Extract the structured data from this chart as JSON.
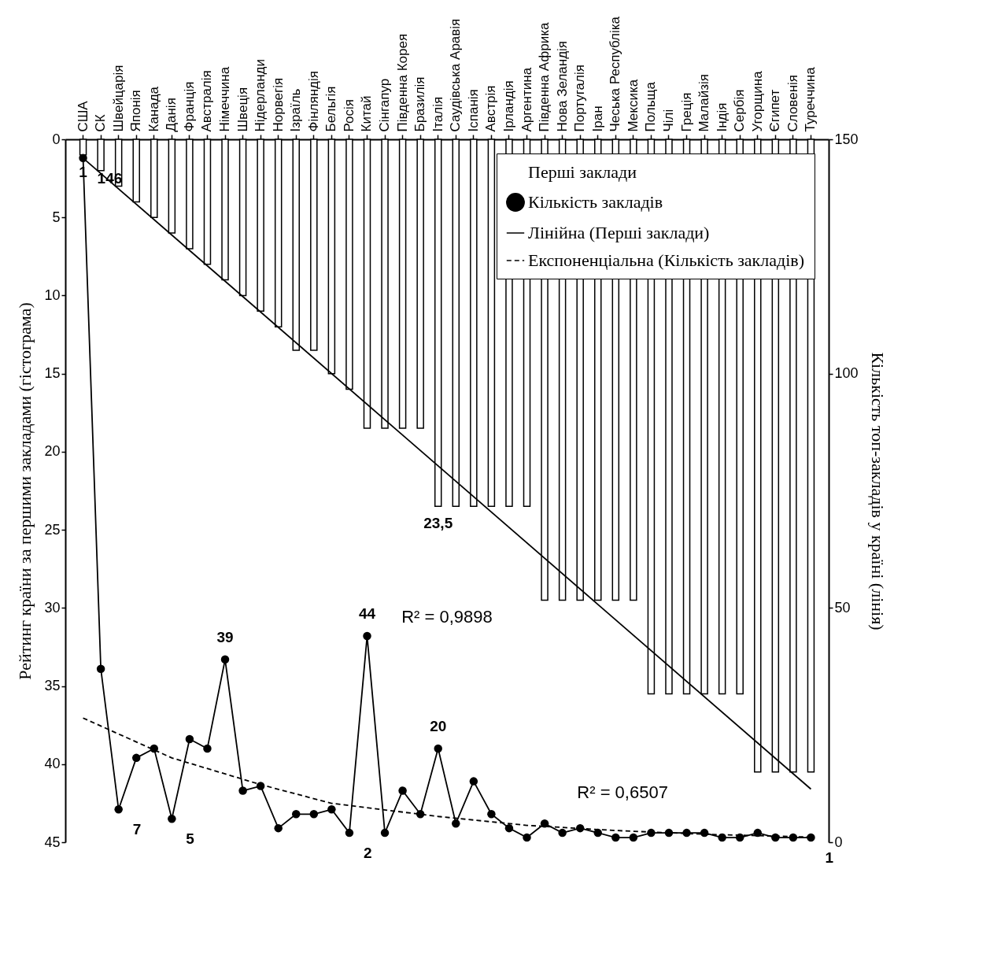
{
  "chart_data": {
    "type": "bar",
    "categories": [
      "США",
      "СК",
      "Швейцарія",
      "Японія",
      "Канада",
      "Данія",
      "Франція",
      "Австралія",
      "Німеччина",
      "Швеція",
      "Нідерланди",
      "Норвегія",
      "Ізраїль",
      "Фінляндія",
      "Бельгія",
      "Росія",
      "Китай",
      "Сінгапур",
      "Південна Корея",
      "Бразилія",
      "Італія",
      "Саудівська Аравія",
      "Іспанія",
      "Австрія",
      "Ірландія",
      "Аргентина",
      "Південна Африка",
      "Нова Зеландія",
      "Португалія",
      "Іран",
      "Чеська Республіка",
      "Мексика",
      "Польща",
      "Чілі",
      "Греція",
      "Малайзія",
      "Індія",
      "Сербія",
      "Угорщина",
      "Єгипет",
      "Словенія",
      "Туреччина"
    ],
    "ylabel": "Рейтинг країни за першими закладами (гістограма)",
    "y2label": "Кількість топ-закладів у країні (лінія)",
    "ylim": [
      45,
      0
    ],
    "yticks": [
      0,
      5,
      10,
      15,
      20,
      25,
      30,
      35,
      40,
      45
    ],
    "y2lim": [
      0,
      150
    ],
    "y2ticks": [
      0,
      50,
      100,
      150
    ],
    "legend": "top right",
    "series": [
      {
        "name": "Перші заклади",
        "color": "#ffffff",
        "values": [
          1,
          2,
          3,
          4,
          5,
          6,
          7,
          8,
          9,
          10,
          11,
          12,
          13.5,
          13.5,
          15,
          16,
          18.5,
          18.5,
          18.5,
          18.5,
          23.5,
          23.5,
          23.5,
          23.5,
          23.5,
          23.5,
          29.5,
          29.5,
          29.5,
          29.5,
          29.5,
          29.5,
          35.5,
          35.5,
          35.5,
          35.5,
          35.5,
          35.5,
          40.5,
          40.5,
          40.5,
          40.5
        ],
        "value_labels": [
          "1",
          null,
          null,
          null,
          null,
          null,
          null,
          null,
          null,
          null,
          null,
          null,
          null,
          null,
          null,
          null,
          null,
          null,
          null,
          null,
          "23,5",
          null,
          null,
          null,
          null,
          null,
          null,
          null,
          null,
          null,
          null,
          null,
          null,
          null,
          null,
          null,
          null,
          null,
          null,
          null,
          null,
          null
        ]
      },
      {
        "name": "Кількість закладів",
        "type": "line",
        "axis": "y2",
        "color": "#000000",
        "marker": "circle",
        "values": [
          146,
          37,
          7,
          18,
          20,
          5,
          22,
          20,
          39,
          11,
          12,
          3,
          6,
          6,
          7,
          2,
          44,
          2,
          11,
          6,
          20,
          4,
          13,
          6,
          3,
          1,
          4,
          2,
          3,
          2,
          1,
          1,
          2,
          2,
          2,
          2,
          1,
          1,
          2,
          1,
          1,
          1
        ],
        "value_labels": [
          "146",
          null,
          "7",
          null,
          null,
          "5",
          null,
          null,
          "39",
          null,
          null,
          null,
          null,
          null,
          null,
          "2",
          "44",
          null,
          null,
          null,
          "20",
          null,
          null,
          null,
          null,
          null,
          null,
          null,
          null,
          null,
          null,
          null,
          null,
          null,
          null,
          null,
          null,
          null,
          null,
          null,
          null,
          "1"
        ]
      },
      {
        "name": "Лінійна (Перші заклади)",
        "type": "line",
        "color": "#000000",
        "line_style": "solid",
        "x": [
          "США",
          "Туреччина"
        ],
        "values": [
          1.2,
          41.6
        ]
      },
      {
        "name": "Експоненціальна (Кількість закладів)",
        "type": "line",
        "axis": "y2",
        "color": "#000000",
        "line_style": "dashed",
        "x": [
          "США",
          "Данія",
          "Нідерланди",
          "Бельгія",
          "Італія",
          "Аргентина",
          "Чеська Республіка",
          "Малайзія",
          "Словенія",
          "Туреччина"
        ],
        "values": [
          26.5,
          18,
          12.3,
          8.3,
          5.5,
          3.6,
          2.5,
          1.7,
          1.2,
          1.1
        ]
      }
    ],
    "annotations": [
      "R² = 0,9898",
      "R² = 0,6507"
    ]
  }
}
